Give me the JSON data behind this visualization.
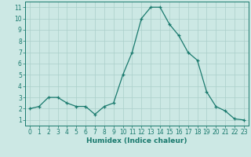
{
  "x": [
    0,
    1,
    2,
    3,
    4,
    5,
    6,
    7,
    8,
    9,
    10,
    11,
    12,
    13,
    14,
    15,
    16,
    17,
    18,
    19,
    20,
    21,
    22,
    23
  ],
  "y": [
    2,
    2.2,
    3,
    3,
    2.5,
    2.2,
    2.2,
    1.5,
    2.2,
    2.5,
    5,
    7,
    10,
    11,
    11,
    9.5,
    8.5,
    7,
    6.3,
    3.5,
    2.2,
    1.8,
    1.1,
    1
  ],
  "line_color": "#1a7a6e",
  "marker": "+",
  "marker_size": 3,
  "bg_color": "#cce8e4",
  "grid_color": "#aacfca",
  "xlabel": "Humidex (Indice chaleur)",
  "xlim": [
    -0.5,
    23.5
  ],
  "ylim": [
    0.5,
    11.5
  ],
  "yticks": [
    1,
    2,
    3,
    4,
    5,
    6,
    7,
    8,
    9,
    10,
    11
  ],
  "xticks": [
    0,
    1,
    2,
    3,
    4,
    5,
    6,
    7,
    8,
    9,
    10,
    11,
    12,
    13,
    14,
    15,
    16,
    17,
    18,
    19,
    20,
    21,
    22,
    23
  ],
  "tick_color": "#1a7a6e",
  "label_color": "#1a7a6e",
  "xlabel_fontsize": 6.5,
  "tick_fontsize": 5.5,
  "linewidth": 0.9
}
